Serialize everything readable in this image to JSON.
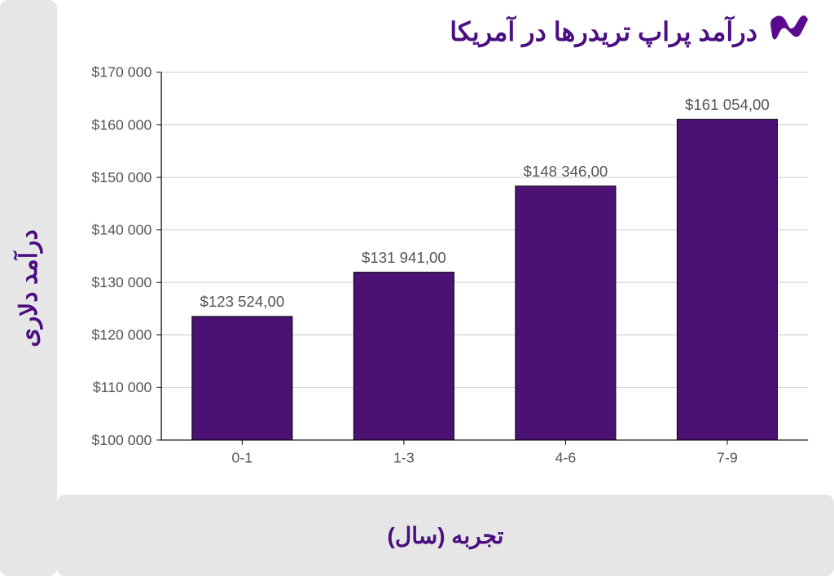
{
  "title": "درآمد پراپ تریدرها در آمریکا",
  "yAxisLabel": "درآمد دلاری",
  "xAxisLabel": "تجربه (سال)",
  "colors": {
    "accent": "#4b0e82",
    "bar": "#4c1273",
    "barBorder": "#000000",
    "panel": "#e6e6e6",
    "gridline": "#cccccc",
    "tickText": "#555555",
    "background": "#ffffff"
  },
  "chart": {
    "type": "bar",
    "categories": [
      "0-1",
      "1-3",
      "4-6",
      "7-9"
    ],
    "values": [
      123524,
      131941,
      148346,
      161054
    ],
    "value_labels": [
      "$123 524,00",
      "$131 941,00",
      "$148 346,00",
      "$161 054,00"
    ],
    "ylim": [
      100000,
      170000
    ],
    "ytick_step": 10000,
    "ytick_labels": [
      "$100 000",
      "$110 000",
      "$120 000",
      "$130 000",
      "$140 000",
      "$150 000",
      "$160 000",
      "$170 000"
    ],
    "bar_width": 0.62,
    "bar_color": "#4c1273",
    "grid_color": "#cccccc",
    "axis_color": "#000000",
    "tick_fontsize": 18,
    "label_fontsize": 19,
    "title_fontsize": 32
  }
}
